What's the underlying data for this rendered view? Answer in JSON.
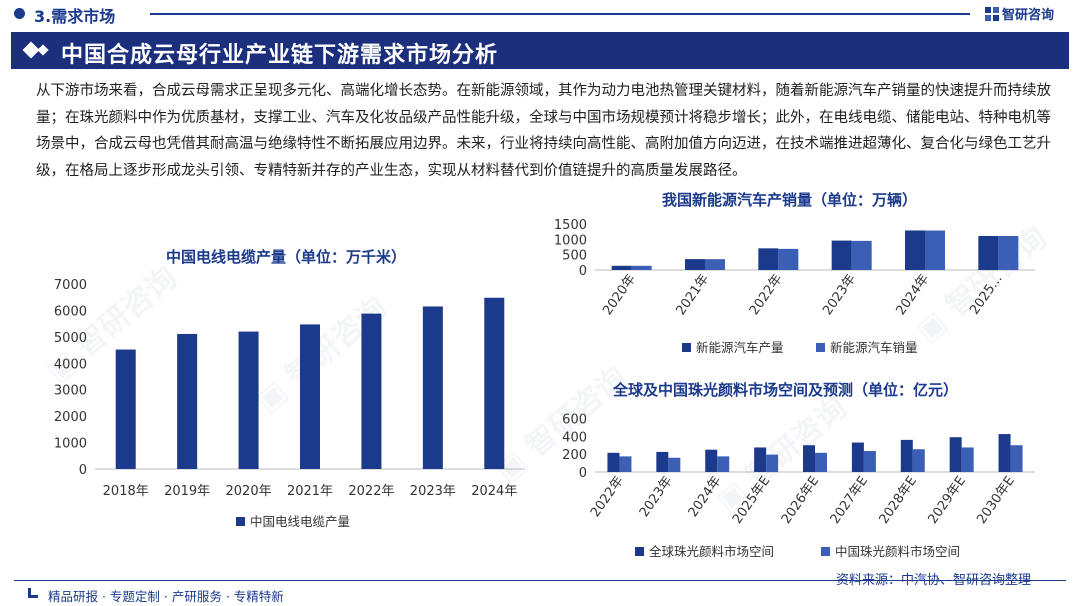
{
  "header": {
    "section_title": "3.需求市场",
    "brand": "智研咨询",
    "main_title": "中国合成云母行业产业链下游需求市场分析"
  },
  "summary": "从下游市场来看，合成云母需求正呈现多元化、高端化增长态势。在新能源领域，其作为动力电池热管理关键材料，随着新能源汽车产销量的快速提升而持续放量；在珠光颜料中作为优质基材，支撑工业、汽车及化妆品级产品性能升级，全球与中国市场规模预计将稳步增长；此外，在电线电缆、储能电站、特种电机等场景中，合成云母也凭借其耐高温与绝缘特性不断拓展应用边界。未来，行业将持续向高性能、高附加值方向迈进，在技术端推进超薄化、复合化与绿色工艺升级，在格局上逐步形成龙头引领、专精特新并存的产业生态，实现从材料替代到价值链提升的高质量发展路径。",
  "footer": {
    "tagline": "精品研报 · 专题定制 · 产研服务 · 专精特新",
    "source": "资料来源：中汽协、智研咨询整理"
  },
  "colors": {
    "navy": "#1b3a8c",
    "dark_series": "#1b3a8c",
    "light_series": "#3a5fb5"
  },
  "chart_data": [
    {
      "id": "cable",
      "type": "bar",
      "title": "中国电线电缆产量（单位：万千米）",
      "categories": [
        "2018年",
        "2019年",
        "2020年",
        "2021年",
        "2022年",
        "2023年",
        "2024年"
      ],
      "series": [
        {
          "name": "中国电线电缆产量",
          "values": [
            4520,
            5110,
            5200,
            5470,
            5880,
            6150,
            6480
          ],
          "color": "#1b3a8c"
        }
      ],
      "yticks": [
        0,
        1000,
        2000,
        3000,
        4000,
        5000,
        6000,
        7000
      ],
      "ylim": [
        0,
        7000
      ],
      "legend": "bottom"
    },
    {
      "id": "nev",
      "type": "bar",
      "title": "我国新能源汽车产销量（单位：万辆）",
      "categories": [
        "2020年",
        "2021年",
        "2022年",
        "2023年",
        "2024年",
        "2025..."
      ],
      "series": [
        {
          "name": "新能源汽车产量",
          "values": [
            137,
            355,
            706,
            959,
            1289,
            1110
          ],
          "color": "#1b3a8c"
        },
        {
          "name": "新能源汽车销量",
          "values": [
            137,
            353,
            689,
            950,
            1287,
            1110
          ],
          "color": "#3a5fb5"
        }
      ],
      "yticks": [
        0,
        500,
        1000,
        1500
      ],
      "ylim": [
        0,
        1500
      ],
      "legend": "bottom"
    },
    {
      "id": "pearl",
      "type": "bar",
      "title": "全球及中国珠光颜料市场空间及预测（单位：亿元）",
      "categories": [
        "2022年",
        "2023年",
        "2024年",
        "2025年E",
        "2026年E",
        "2027年E",
        "2028年E",
        "2029年E",
        "2030年E"
      ],
      "series": [
        {
          "name": "全球珠光颜料市场空间",
          "values": [
            215,
            225,
            250,
            275,
            300,
            330,
            360,
            390,
            425
          ],
          "color": "#1b3a8c"
        },
        {
          "name": "中国珠光颜料市场空间",
          "values": [
            175,
            160,
            175,
            195,
            215,
            235,
            255,
            275,
            300
          ],
          "color": "#3a5fb5"
        }
      ],
      "yticks": [
        0,
        200,
        400,
        600
      ],
      "ylim": [
        0,
        650
      ],
      "legend": "bottom"
    }
  ]
}
